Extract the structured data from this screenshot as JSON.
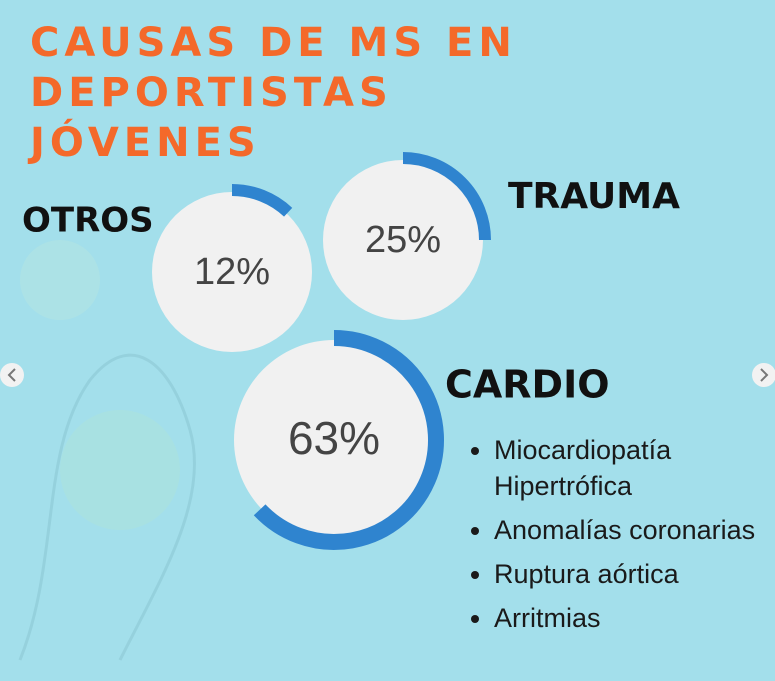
{
  "chart_data": {
    "type": "ring",
    "title": "CAUSAS DE MS EN DEPORTISTAS JÓVENES",
    "categories": [
      "OTROS",
      "TRAUMA",
      "CARDIO"
    ],
    "values": [
      12,
      25,
      63
    ],
    "value_labels": [
      "12%",
      "25%",
      "63%"
    ],
    "color": "#2f84cf"
  },
  "list": {
    "items": [
      "Miocardiopatía Hipertrófica",
      "Anomalías coronarias",
      "Ruptura aórtica",
      "Arritmias"
    ]
  }
}
